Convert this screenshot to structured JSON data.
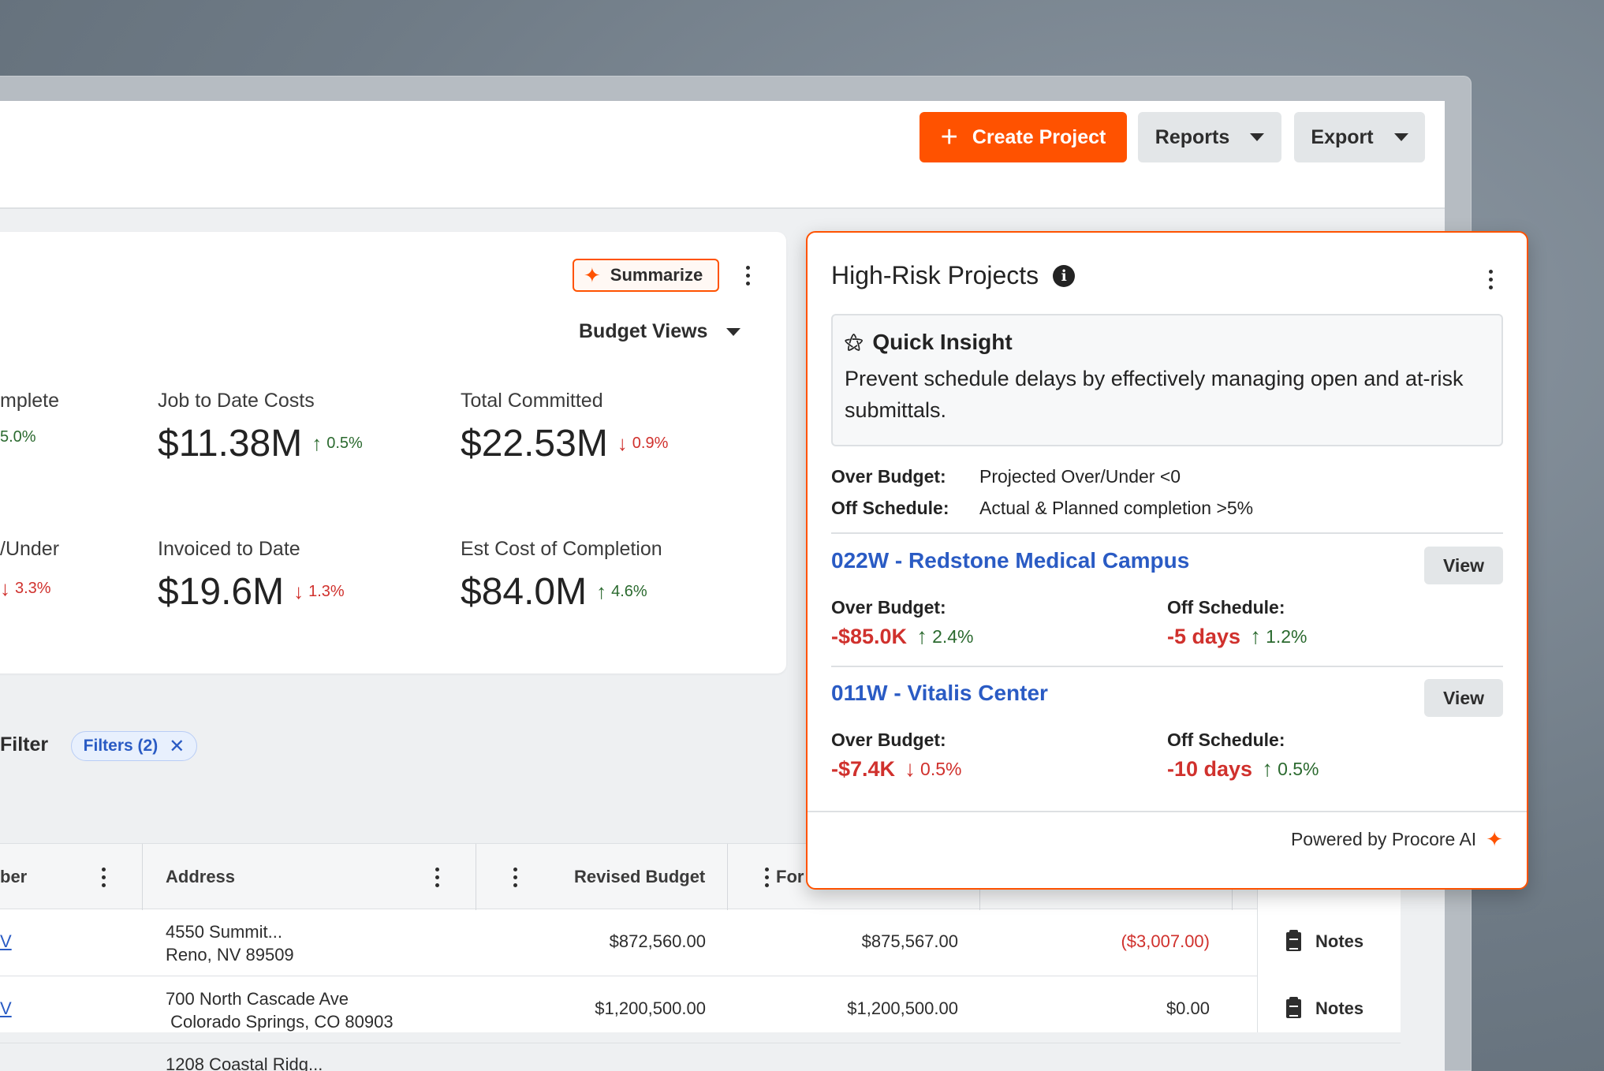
{
  "toolbar": {
    "create_label": "Create Project",
    "reports_label": "Reports",
    "export_label": "Export"
  },
  "metrics_card": {
    "summarize_label": "Summarize",
    "budget_views_label": "Budget Views",
    "metrics": [
      {
        "label": "mplete",
        "value": "",
        "delta": "5.0%",
        "direction": "up"
      },
      {
        "label": "Job to Date Costs",
        "value": "$11.38M",
        "delta": "0.5%",
        "direction": "up"
      },
      {
        "label": "Total Committed",
        "value": "$22.53M",
        "delta": "0.9%",
        "direction": "down"
      },
      {
        "label": "/Under",
        "value": "",
        "delta": "3.3%",
        "direction": "down"
      },
      {
        "label": "Invoiced to Date",
        "value": "$19.6M",
        "delta": "1.3%",
        "direction": "down"
      },
      {
        "label": "Est Cost of Completion",
        "value": "$84.0M",
        "delta": "4.6%",
        "direction": "up"
      }
    ]
  },
  "filters": {
    "label": "Filter",
    "chip_label": "Filters (2)"
  },
  "table": {
    "headers": [
      "ber",
      "Address",
      "Revised Budget",
      "For"
    ],
    "rows": [
      {
        "link": "V",
        "address_line1": "4550 Summit...",
        "address_line2": "Reno, NV 89509",
        "revised_budget": "$872,560.00",
        "forecast": "$875,567.00",
        "variance": "($3,007.00)",
        "variance_negative": true,
        "notes": "Notes"
      },
      {
        "link": "V",
        "address_line1": "700 North Cascade Ave",
        "address_line2": " Colorado Springs, CO 80903",
        "revised_budget": "$1,200,500.00",
        "forecast": "$1,200,500.00",
        "variance": "$0.00",
        "variance_negative": false,
        "notes": "Notes"
      },
      {
        "link": "",
        "address_line1": "1208 Coastal Ridg...",
        "address_line2": "",
        "revised_budget": "",
        "forecast": "",
        "variance": "",
        "variance_negative": false,
        "notes": ""
      }
    ]
  },
  "risk_panel": {
    "title": "High-Risk Projects",
    "insight_title": "Quick Insight",
    "insight_text": "Prevent schedule delays by effectively managing open and at-risk submittals.",
    "criteria": [
      {
        "key": "Over Budget:",
        "value": "Projected Over/Under <0"
      },
      {
        "key": "Off Schedule:",
        "value": "Actual & Planned completion >5%"
      }
    ],
    "projects": [
      {
        "name": "022W - Redstone Medical Campus",
        "view_label": "View",
        "over_budget_label": "Over Budget:",
        "over_budget_value": "-$85.0K",
        "over_budget_delta": "2.4%",
        "over_budget_direction": "up",
        "off_schedule_label": "Off Schedule:",
        "off_schedule_value": "-5 days",
        "off_schedule_delta": "1.2%",
        "off_schedule_direction": "up"
      },
      {
        "name": "011W - Vitalis Center",
        "view_label": "View",
        "over_budget_label": "Over Budget:",
        "over_budget_value": "-$7.4K",
        "over_budget_delta": "0.5%",
        "over_budget_direction": "down",
        "off_schedule_label": "Off Schedule:",
        "off_schedule_value": "-10 days",
        "off_schedule_delta": "0.5%",
        "off_schedule_direction": "up"
      }
    ],
    "powered_by": "Powered by Procore AI"
  },
  "colors": {
    "brand_orange": "#ff5200",
    "link_blue": "#2a5bc4",
    "positive_green": "#2b6a2f",
    "negative_red": "#d0312d"
  },
  "icons": {
    "create": "plus-icon",
    "dropdown": "caret-down-icon",
    "ai": "sparkle-icon",
    "menu": "kebab-icon",
    "info": "info-icon",
    "insight": "magic-wand-icon",
    "notes": "clipboard-icon",
    "remove": "close-icon"
  }
}
